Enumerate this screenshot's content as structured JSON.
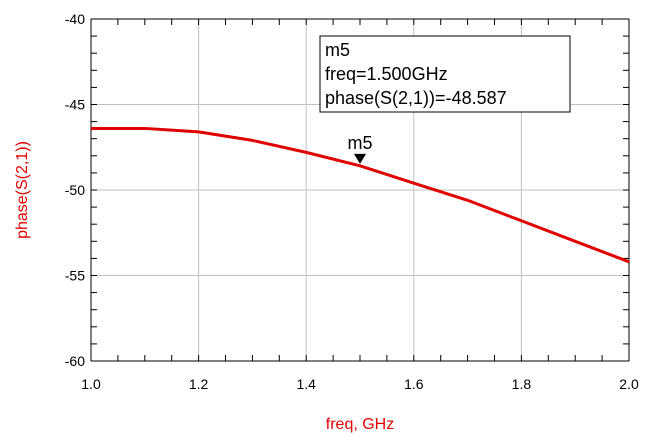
{
  "chart_data": {
    "type": "line",
    "title": "",
    "xlabel": "freq, GHz",
    "ylabel": "phase(S(2,1))",
    "xlim": [
      1.0,
      2.0
    ],
    "ylim": [
      -60,
      -40
    ],
    "x_ticks": [
      1.0,
      1.2,
      1.4,
      1.6,
      1.8,
      2.0
    ],
    "x_tick_labels": [
      "1.0",
      "1.2",
      "1.4",
      "1.6",
      "1.8",
      "2.0"
    ],
    "y_ticks": [
      -40,
      -45,
      -50,
      -55,
      -60
    ],
    "y_tick_labels": [
      "-40",
      "-45",
      "-50",
      "-55",
      "-60"
    ],
    "grid": true,
    "series": [
      {
        "color": "#e00000",
        "x": [
          1.0,
          1.1,
          1.2,
          1.3,
          1.4,
          1.5,
          1.6,
          1.7,
          1.8,
          1.9,
          2.0
        ],
        "y": [
          -46.4,
          -46.4,
          -46.6,
          -47.1,
          -47.8,
          -48.587,
          -49.6,
          -50.6,
          -51.8,
          -53.0,
          -54.2
        ]
      }
    ],
    "marker": {
      "name": "m5",
      "x": 1.5,
      "y": -48.587,
      "readout_lines": [
        "m5",
        "freq=1.500GHz",
        "phase(S(2,1))=-48.587"
      ]
    }
  }
}
